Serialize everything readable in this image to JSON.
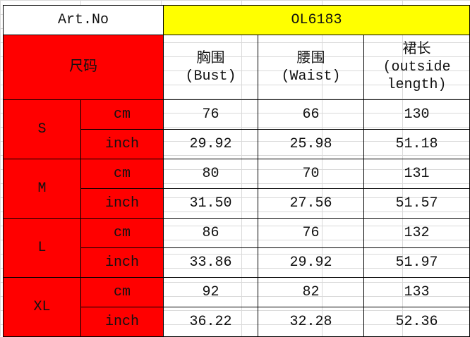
{
  "header": {
    "art_label": "Art.No",
    "art_value": "OL6183"
  },
  "columns": {
    "size_label": "尺码",
    "bust": {
      "zh": "胸围",
      "en": "(Bust)"
    },
    "waist": {
      "zh": "腰围",
      "en": "(Waist)"
    },
    "length": {
      "zh": "裙长",
      "en1": "(outside",
      "en2": "length)"
    }
  },
  "sizes": [
    {
      "size": "S",
      "cm": {
        "unit": "cm",
        "bust": "76",
        "waist": "66",
        "length": "130"
      },
      "inch": {
        "unit": "inch",
        "bust": "29.92",
        "waist": "25.98",
        "length": "51.18"
      }
    },
    {
      "size": "M",
      "cm": {
        "unit": "cm",
        "bust": "80",
        "waist": "70",
        "length": "131"
      },
      "inch": {
        "unit": "inch",
        "bust": "31.50",
        "waist": "27.56",
        "length": "51.57"
      }
    },
    {
      "size": "L",
      "cm": {
        "unit": "cm",
        "bust": "86",
        "waist": "76",
        "length": "132"
      },
      "inch": {
        "unit": "inch",
        "bust": "33.86",
        "waist": "29.92",
        "length": "51.97"
      }
    },
    {
      "size": "XL",
      "cm": {
        "unit": "cm",
        "bust": "92",
        "waist": "82",
        "length": "133"
      },
      "inch": {
        "unit": "inch",
        "bust": "36.22",
        "waist": "32.28",
        "length": "52.36"
      }
    }
  ],
  "colors": {
    "header_fill": "#ff0000",
    "art_fill": "#ffff00"
  }
}
